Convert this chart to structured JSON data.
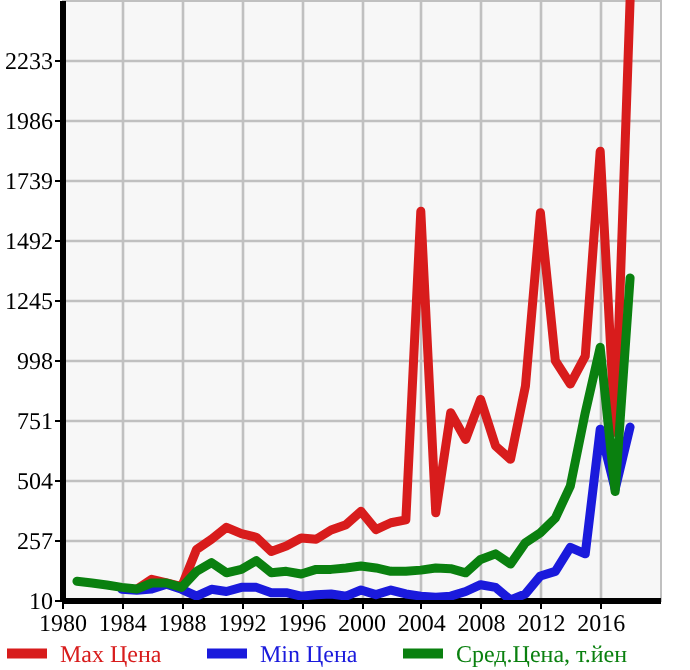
{
  "chart_data": {
    "type": "line",
    "x": [
      1981,
      1982,
      1983,
      1984,
      1985,
      1986,
      1987,
      1988,
      1989,
      1990,
      1991,
      1992,
      1993,
      1994,
      1995,
      1996,
      1997,
      1998,
      1999,
      2000,
      2001,
      2002,
      2003,
      2004,
      2005,
      2006,
      2007,
      2008,
      2009,
      2010,
      2011,
      2012,
      2013,
      2014,
      2015,
      2016,
      2017,
      2018
    ],
    "series": [
      {
        "name": "Max Цена",
        "color": "#d81c1c",
        "values": [
          null,
          null,
          null,
          null,
          54,
          95,
          80,
          65,
          218,
          260,
          309,
          283,
          268,
          210,
          232,
          265,
          260,
          298,
          320,
          375,
          300,
          328,
          340,
          1610,
          369,
          781,
          671,
          836,
          644,
          589,
          891,
          1604,
          995,
          899,
          1014,
          1857,
          700,
          2480
        ]
      },
      {
        "name": "Min Цена",
        "color": "#1a1adc",
        "values": [
          null,
          null,
          null,
          54,
          50,
          55,
          75,
          54,
          26,
          54,
          45,
          62,
          62,
          40,
          40,
          26,
          32,
          35,
          26,
          51,
          32,
          51,
          35,
          26,
          21,
          26,
          45,
          73,
          62,
          10,
          35,
          109,
          128,
          227,
          200,
          713,
          466,
          722
        ]
      },
      {
        "name": "Сред.Цена, т.йен",
        "color": "#0a800f",
        "values": [
          87,
          80,
          72,
          62,
          55,
          80,
          80,
          62,
          128,
          164,
          122,
          136,
          172,
          122,
          128,
          117,
          136,
          136,
          142,
          150,
          142,
          128,
          128,
          133,
          142,
          139,
          122,
          177,
          200,
          158,
          246,
          287,
          347,
          479,
          781,
          1050,
          457,
          1336
        ]
      }
    ],
    "xlim": [
      1980,
      2020
    ],
    "xticks": [
      1980,
      1984,
      1988,
      1992,
      1996,
      2000,
      2004,
      2008,
      2012,
      2016
    ],
    "ylim": [
      10,
      2480
    ],
    "yticks": [
      10,
      257,
      504,
      751,
      998,
      1245,
      1492,
      1739,
      1986,
      2233
    ],
    "grid": true,
    "legend": "bottom",
    "line_style": "solid"
  }
}
